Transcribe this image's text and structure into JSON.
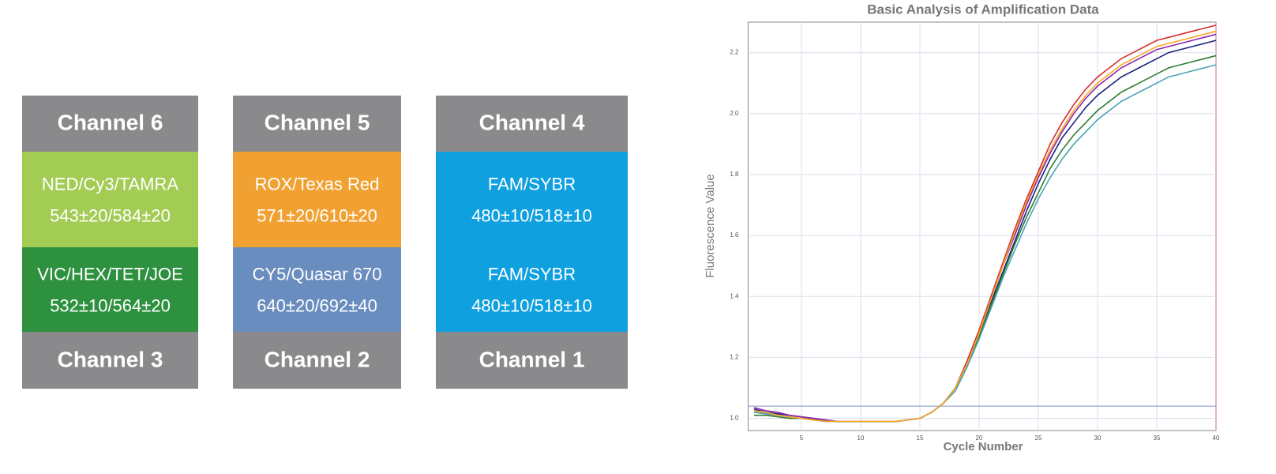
{
  "header_color": "#8a8a8c",
  "columns": [
    {
      "top": "Channel 6",
      "bottom": "Channel 3",
      "cells": [
        {
          "dyes": "NED/Cy3/TAMRA",
          "range": "543±20/584±20",
          "color": "#a3cc55"
        },
        {
          "dyes": "VIC/HEX/TET/JOE",
          "range": "532±10/564±20",
          "color": "#2e9140"
        }
      ]
    },
    {
      "top": "Channel 5",
      "bottom": "Channel 2",
      "cells": [
        {
          "dyes": "ROX/Texas Red",
          "range": "571±20/610±20",
          "color": "#f0a132"
        },
        {
          "dyes": "CY5/Quasar 670",
          "range": "640±20/692±40",
          "color": "#6a8dbf"
        }
      ]
    },
    {
      "top": "Channel 4",
      "bottom": "Channel 1",
      "cells": [
        {
          "dyes": "FAM/SYBR",
          "range": "480±10/518±10",
          "color": "#0fa0e0"
        },
        {
          "dyes": "FAM/SYBR",
          "range": "480±10/518±10",
          "color": "#0fa0e0"
        }
      ]
    }
  ],
  "chart_data": {
    "type": "line",
    "title": "Basic Analysis of Amplification Data",
    "x_label": "Cycle Number",
    "y_label": "Fluorescence Value",
    "x": [
      1,
      2,
      3,
      4,
      5,
      6,
      7,
      8,
      9,
      10,
      11,
      12,
      13,
      14,
      15,
      16,
      17,
      18,
      19,
      20,
      21,
      22,
      23,
      24,
      25,
      26,
      27,
      28,
      29,
      30,
      31,
      32,
      33,
      34,
      35,
      36,
      37,
      38,
      39,
      40
    ],
    "xlim": [
      0.5,
      40
    ],
    "xticks": [
      5,
      10,
      15,
      20,
      25,
      30,
      35,
      40
    ],
    "ylim": [
      0.96,
      2.3
    ],
    "yticks": [
      {
        "value": 1,
        "label": "1.0"
      },
      1.2,
      1.4,
      1.6,
      1.8,
      {
        "value": 2,
        "label": "2.0"
      },
      2.2
    ],
    "grid": true,
    "threshold": 1.04,
    "threshold_color": "#7f8fd0",
    "series": [
      {
        "color": "#1a237e",
        "values": [
          1.03,
          1.02,
          1.015,
          1.01,
          1.005,
          1.0,
          0.995,
          0.99,
          0.99,
          0.99,
          0.99,
          0.99,
          0.99,
          0.995,
          1.0,
          1.02,
          1.05,
          1.1,
          1.18,
          1.28,
          1.38,
          1.48,
          1.58,
          1.68,
          1.77,
          1.85,
          1.92,
          1.97,
          2.02,
          2.06,
          2.09,
          2.12,
          2.14,
          2.16,
          2.18,
          2.2,
          2.21,
          2.22,
          2.23,
          2.24
        ]
      },
      {
        "color": "#d32f2f",
        "values": [
          1.02,
          1.015,
          1.01,
          1.005,
          1.0,
          0.998,
          0.995,
          0.99,
          0.99,
          0.99,
          0.99,
          0.99,
          0.99,
          0.995,
          1.0,
          1.02,
          1.05,
          1.1,
          1.19,
          1.29,
          1.4,
          1.51,
          1.62,
          1.72,
          1.81,
          1.9,
          1.97,
          2.03,
          2.08,
          2.12,
          2.15,
          2.18,
          2.2,
          2.22,
          2.24,
          2.25,
          2.26,
          2.27,
          2.28,
          2.29
        ]
      },
      {
        "color": "#8e24aa",
        "values": [
          1.035,
          1.025,
          1.02,
          1.01,
          1.005,
          1.0,
          0.995,
          0.99,
          0.99,
          0.99,
          0.99,
          0.99,
          0.99,
          0.995,
          1.0,
          1.02,
          1.05,
          1.1,
          1.18,
          1.28,
          1.39,
          1.5,
          1.6,
          1.7,
          1.79,
          1.87,
          1.94,
          2.0,
          2.05,
          2.09,
          2.12,
          2.15,
          2.17,
          2.19,
          2.21,
          2.22,
          2.23,
          2.24,
          2.25,
          2.26
        ]
      },
      {
        "color": "#2e7d32",
        "values": [
          1.01,
          1.01,
          1.005,
          1.0,
          1.0,
          0.995,
          0.99,
          0.99,
          0.99,
          0.99,
          0.99,
          0.99,
          0.99,
          0.995,
          1.0,
          1.02,
          1.05,
          1.1,
          1.18,
          1.27,
          1.37,
          1.47,
          1.57,
          1.66,
          1.74,
          1.82,
          1.88,
          1.93,
          1.97,
          2.01,
          2.04,
          2.07,
          2.09,
          2.11,
          2.13,
          2.15,
          2.16,
          2.17,
          2.18,
          2.19
        ]
      },
      {
        "color": "#4aa3b5",
        "values": [
          1.02,
          1.015,
          1.01,
          1.005,
          1.0,
          0.995,
          0.99,
          0.99,
          0.99,
          0.99,
          0.99,
          0.99,
          0.99,
          0.995,
          1.0,
          1.02,
          1.05,
          1.09,
          1.17,
          1.26,
          1.36,
          1.46,
          1.55,
          1.64,
          1.72,
          1.79,
          1.85,
          1.9,
          1.94,
          1.98,
          2.01,
          2.04,
          2.06,
          2.08,
          2.1,
          2.12,
          2.13,
          2.14,
          2.15,
          2.16
        ]
      },
      {
        "color": "#f9a825",
        "values": [
          1.025,
          1.02,
          1.01,
          1.005,
          1.0,
          0.995,
          0.99,
          0.99,
          0.99,
          0.99,
          0.99,
          0.99,
          0.99,
          0.995,
          1.0,
          1.02,
          1.05,
          1.1,
          1.18,
          1.28,
          1.39,
          1.5,
          1.61,
          1.71,
          1.8,
          1.88,
          1.95,
          2.01,
          2.06,
          2.1,
          2.13,
          2.16,
          2.18,
          2.2,
          2.22,
          2.23,
          2.24,
          2.25,
          2.26,
          2.27
        ]
      }
    ]
  }
}
